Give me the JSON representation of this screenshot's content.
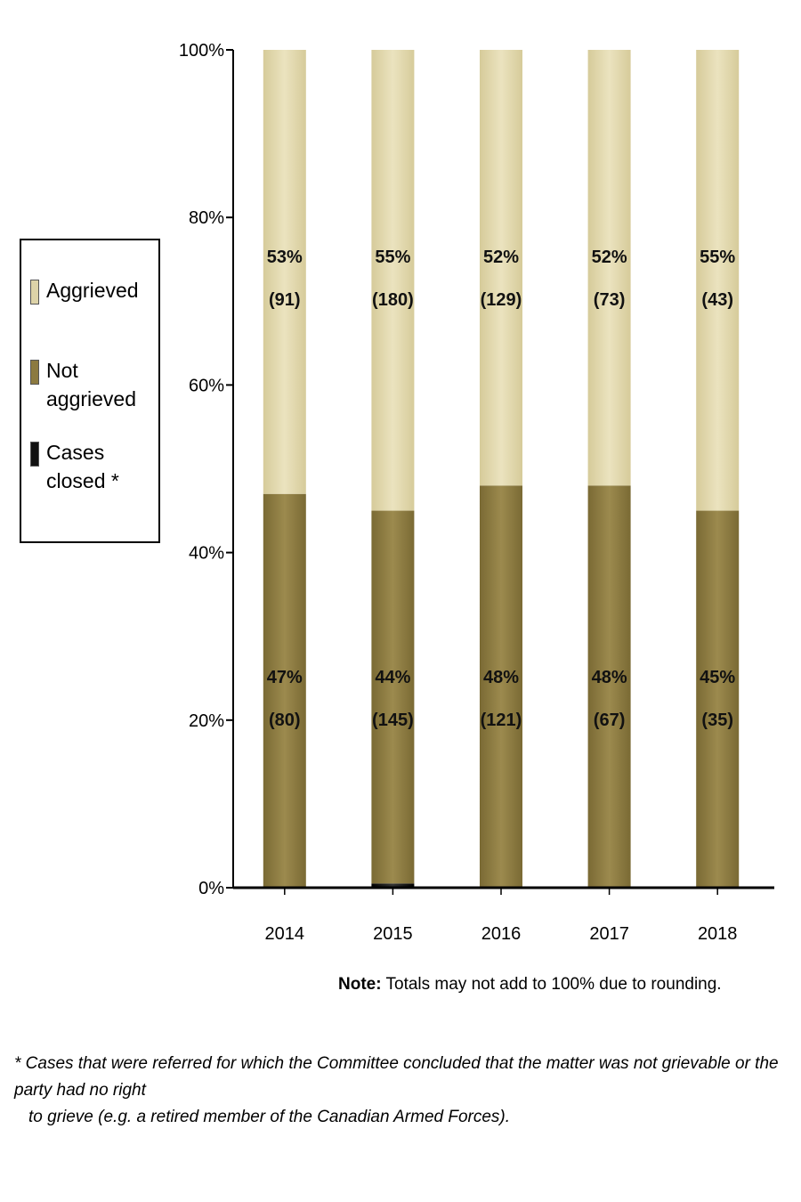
{
  "chart_data": {
    "type": "bar",
    "stacked": true,
    "categories": [
      "2014",
      "2015",
      "2016",
      "2017",
      "2018"
    ],
    "y_ticks": [
      "0%",
      "20%",
      "40%",
      "60%",
      "80%",
      "100%"
    ],
    "ylim": [
      0,
      100
    ],
    "series": [
      {
        "name": "Cases closed *",
        "color": "#111111",
        "values": [
          0,
          0.5,
          0,
          0,
          0
        ],
        "labels": [
          "",
          "",
          "",
          "",
          ""
        ]
      },
      {
        "name": "Not aggrieved",
        "color": "#8c7a40",
        "values": [
          47,
          44.5,
          48,
          48,
          45
        ],
        "labels": [
          [
            "47%",
            "(80)"
          ],
          [
            "44%",
            "(145)"
          ],
          [
            "48%",
            "(121)"
          ],
          [
            "48%",
            "(67)"
          ],
          [
            "45%",
            "(35)"
          ]
        ]
      },
      {
        "name": "Aggrieved",
        "color": "#ddd3a8",
        "values": [
          53,
          55,
          52,
          52,
          55
        ],
        "labels": [
          [
            "53%",
            "(91)"
          ],
          [
            "55%",
            "(180)"
          ],
          [
            "52%",
            "(129)"
          ],
          [
            "52%",
            "(73)"
          ],
          [
            "55%",
            "(43)"
          ]
        ]
      }
    ],
    "legend_position": "left"
  },
  "legend": {
    "items": [
      {
        "label_lines": [
          "Aggrieved"
        ],
        "color": "#ddd3a8"
      },
      {
        "label_lines": [
          "Not aggrieved"
        ],
        "color": "#8c7a40"
      },
      {
        "label_lines": [
          "Cases",
          "closed *"
        ],
        "color": "#111111"
      }
    ]
  },
  "note": {
    "bold": "Note:",
    "text": " Totals may not add to 100% due to rounding."
  },
  "footnote": {
    "line1": "* Cases that were referred for which the Committee concluded that the matter was not grievable or the party had no right",
    "line2": "to grieve (e.g. a retired member of the Canadian Armed Forces)."
  }
}
